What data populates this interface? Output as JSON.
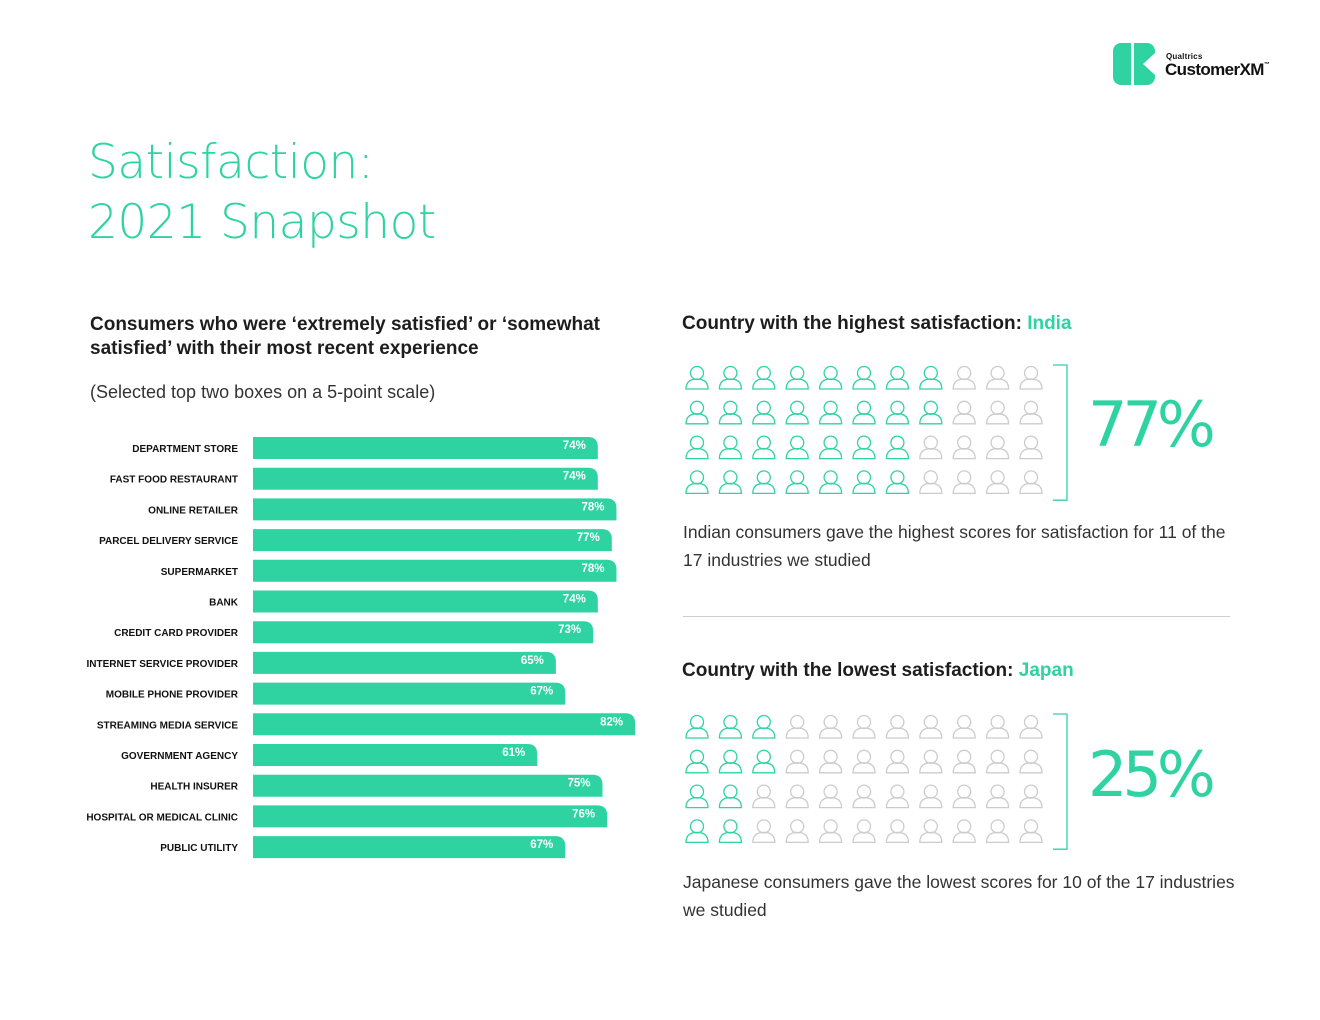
{
  "brand": {
    "small": "Qualtrics",
    "name": "CustomerXM",
    "tm": "™",
    "colors": {
      "accent": "#2fd3a2",
      "text": "#1d1d1d",
      "muted": "#cccccc"
    }
  },
  "title": {
    "line1": "Satisfaction:",
    "line2": "2021 Snapshot"
  },
  "left": {
    "heading": "Consumers who were ‘extremely satisfied’ or ‘somewhat satisfied’ with their most recent experience",
    "subheading": "(Selected top two boxes on a 5-point scale)"
  },
  "chart_data": {
    "type": "bar",
    "orientation": "horizontal",
    "title": "Consumers who were ‘extremely satisfied’ or ‘somewhat satisfied’ with their most recent experience",
    "categories": [
      "DEPARTMENT STORE",
      "FAST FOOD RESTAURANT",
      "ONLINE RETAILER",
      "PARCEL DELIVERY SERVICE",
      "SUPERMARKET",
      "BANK",
      "CREDIT CARD PROVIDER",
      "INTERNET SERVICE PROVIDER",
      "MOBILE PHONE PROVIDER",
      "STREAMING MEDIA SERVICE",
      "GOVERNMENT AGENCY",
      "HEALTH INSURER",
      "HOSPITAL OR MEDICAL CLINIC",
      "PUBLIC UTILITY"
    ],
    "values": [
      74,
      74,
      78,
      77,
      78,
      74,
      73,
      65,
      67,
      82,
      61,
      75,
      76,
      67
    ],
    "labels": [
      "74%",
      "74%",
      "78%",
      "77%",
      "78%",
      "74%",
      "73%",
      "65%",
      "67%",
      "82%",
      "61%",
      "75%",
      "76%",
      "67%"
    ],
    "unit": "%",
    "xlim": [
      0,
      100
    ],
    "xlabel": "",
    "ylabel": "",
    "grid": false,
    "legend": "none"
  },
  "highest": {
    "label": "Country with the highest satisfaction:",
    "country": "India",
    "percent": "77%",
    "filled_per_row": [
      8,
      8,
      7,
      7
    ],
    "description": "Indian consumers gave the highest scores for satisfaction for 11 of the 17 industries we studied"
  },
  "lowest": {
    "label": "Country with the lowest satisfaction:",
    "country": "Japan",
    "percent": "25%",
    "filled_per_row": [
      3,
      3,
      2,
      2
    ],
    "description": "Japanese consumers gave the lowest scores for 10 of the 17 industries we studied"
  },
  "icons": {
    "person": "person-icon",
    "logo": "customerxm-logo-icon"
  }
}
